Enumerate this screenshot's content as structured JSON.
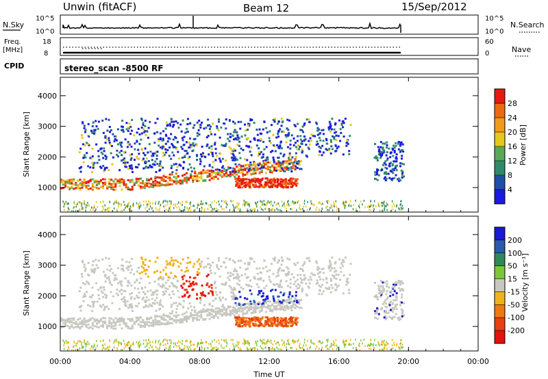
{
  "header": {
    "site": "Unwin (fitACF)",
    "beam": "Beam 12",
    "date": "15/Sep/2012"
  },
  "panels": {
    "nsky_label": "N.Sky",
    "nsky_ticks": [
      "10^5",
      "10^0"
    ],
    "nsearch_label": "N.Search",
    "freq_label_1": "Freq.",
    "freq_label_2": "[MHz]",
    "freq_ticks": [
      "18",
      "8"
    ],
    "nave_ticks": [
      "60",
      "0"
    ],
    "nave_label": "Nave",
    "cpid_label": "CPID",
    "cpid_value": "stereo_scan -8500 RF"
  },
  "chart_data": [
    {
      "type": "heatmap",
      "name": "power",
      "ylabel": "Slant Range [km]",
      "yticks": [
        "1000",
        "2000",
        "3000",
        "4000"
      ],
      "ylim": [
        200,
        4600
      ],
      "xlim": [
        "00:00",
        "24:00"
      ],
      "colorbar": {
        "label": "Power [dB]",
        "ticks": [
          "4",
          "8",
          "12",
          "16",
          "20",
          "24",
          "28"
        ],
        "colors": [
          "#1a1ae0",
          "#1f4fa8",
          "#2f8a6a",
          "#58a858",
          "#e6c81a",
          "#f29a1a",
          "#ee6a12",
          "#e61a10"
        ]
      },
      "data_coverage": [
        {
          "start": "00:00",
          "end": "19:45",
          "note": "ionospheric scatter 900-3200 km"
        },
        {
          "start": "17:50",
          "end": "19:50",
          "note": "sparse scatter 1100-2500 km"
        }
      ]
    },
    {
      "type": "heatmap",
      "name": "velocity",
      "ylabel": "Slant Range [km]",
      "yticks": [
        "1000",
        "2000",
        "3000",
        "4000"
      ],
      "ylim": [
        200,
        4600
      ],
      "xlim": [
        "00:00",
        "24:00"
      ],
      "colorbar": {
        "label": "Velocity [m s⁻¹]",
        "ticks": [
          "200",
          "100",
          "50",
          "15",
          "-15",
          "-50",
          "-100",
          "-200"
        ],
        "colors": [
          "#1a1ad0",
          "#2a5ab0",
          "#2f8a58",
          "#7ac83a",
          "#c8c8c0",
          "#f0b21a",
          "#ee7a12",
          "#e84010",
          "#e61010"
        ]
      }
    }
  ],
  "time_axis": {
    "label": "Time UT",
    "ticks": [
      "00:00",
      "04:00",
      "08:00",
      "12:00",
      "16:00",
      "20:00",
      "00:00"
    ]
  }
}
